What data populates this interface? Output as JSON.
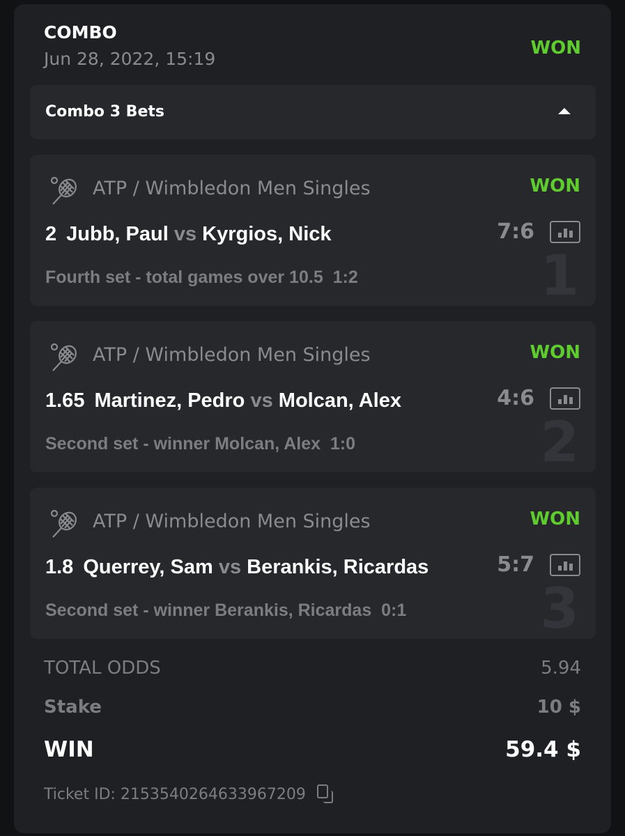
{
  "header": {
    "title": "COMBO",
    "date": "Jun 28, 2022, 15:19",
    "status": "WON"
  },
  "combo": {
    "label": "Combo 3 Bets"
  },
  "bets": [
    {
      "index": "1",
      "league": "ATP / Wimbledon Men Singles",
      "status": "WON",
      "odds": "2",
      "home": "Jubb, Paul",
      "vs": "vs",
      "away": "Kyrgios, Nick",
      "score": "7:6",
      "market": "Fourth set - total games over 10.5",
      "market_score": "1:2"
    },
    {
      "index": "2",
      "league": "ATP / Wimbledon Men Singles",
      "status": "WON",
      "odds": "1.65",
      "home": "Martinez, Pedro",
      "vs": "vs",
      "away": "Molcan, Alex",
      "score": "4:6",
      "market": "Second set - winner Molcan, Alex",
      "market_score": "1:0"
    },
    {
      "index": "3",
      "league": "ATP / Wimbledon Men Singles",
      "status": "WON",
      "odds": "1.8",
      "home": "Querrey, Sam",
      "vs": "vs",
      "away": "Berankis, Ricardas",
      "score": "5:7",
      "market": "Second set - winner Berankis, Ricardas",
      "market_score": "0:1"
    }
  ],
  "totals": {
    "odds_label": "TOTAL ODDS",
    "odds_value": "5.94",
    "stake_label": "Stake",
    "stake_value": "10 $",
    "win_label": "WIN",
    "win_value": "59.4 $"
  },
  "ticket": {
    "label": "Ticket ID: 2153540264633967209"
  },
  "colors": {
    "won": "#5ecc2e",
    "background": "#1f2024",
    "bet_card": "#27282c"
  }
}
